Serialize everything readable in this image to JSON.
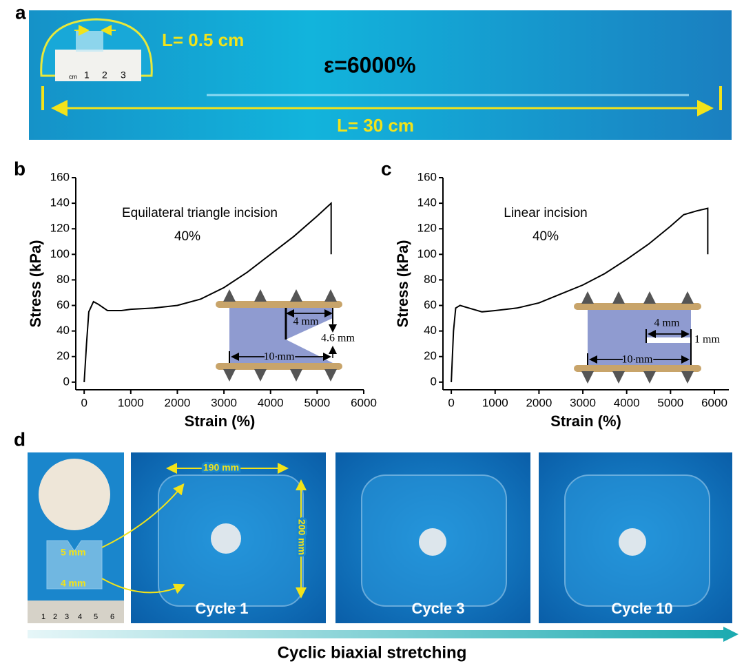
{
  "panel_labels": [
    "a",
    "b",
    "c",
    "d"
  ],
  "panel_a": {
    "inset_label": "L= 0.5 cm",
    "strain": "ε=6000%",
    "length": "L= 30 cm",
    "ruler": [
      "cm",
      "1",
      "2",
      "3"
    ]
  },
  "chart_data": [
    {
      "type": "line",
      "color": "#000000",
      "x_label": "Strain (%)",
      "y_label": "Stress (kPa)",
      "annotations": [
        "Equilateral triangle incision",
        "40%",
        "4 mm",
        "4.6 mm",
        "10 mm"
      ],
      "xlim": [
        -180,
        6000
      ],
      "xticks": [
        0,
        1000,
        2000,
        3000,
        4000,
        5000,
        6000
      ],
      "ylim": [
        -6,
        160
      ],
      "yticks": [
        0,
        20,
        40,
        60,
        80,
        100,
        120,
        140,
        160
      ],
      "x": [
        0,
        50,
        100,
        200,
        300,
        500,
        800,
        1000,
        1500,
        2000,
        2500,
        3000,
        3500,
        4000,
        4500,
        5000,
        5300,
        5300
      ],
      "values": [
        0,
        30,
        55,
        63,
        61,
        56,
        56,
        57,
        58,
        60,
        65,
        74,
        86,
        100,
        114,
        130,
        140,
        100
      ]
    },
    {
      "type": "line",
      "color": "#000000",
      "x_label": "Strain (%)",
      "y_label": "Stress (kPa)",
      "annotations": [
        "Linear incision",
        "40%",
        "4 mm",
        "1 mm",
        "10 mm"
      ],
      "xlim": [
        -190,
        6330
      ],
      "xticks": [
        0,
        1000,
        2000,
        3000,
        4000,
        5000,
        6000
      ],
      "ylim": [
        -6,
        160
      ],
      "yticks": [
        0,
        20,
        40,
        60,
        80,
        100,
        120,
        140,
        160
      ],
      "x": [
        0,
        50,
        100,
        200,
        400,
        700,
        1000,
        1500,
        2000,
        2500,
        3000,
        3500,
        4000,
        4500,
        5000,
        5300,
        5600,
        5850,
        5850
      ],
      "values": [
        0,
        40,
        58,
        60,
        58,
        55,
        56,
        58,
        62,
        69,
        76,
        85,
        96,
        108,
        122,
        131,
        134,
        136,
        100
      ]
    }
  ],
  "panel_d": {
    "labels": [
      "5 mm",
      "4 mm"
    ],
    "dimensions": [
      "190 mm",
      "200 mm"
    ],
    "cycles": [
      "Cycle 1",
      "Cycle 3",
      "Cycle 10"
    ],
    "ruler": [
      "1",
      "2",
      "3",
      "4",
      "5",
      "6"
    ],
    "caption": "Cyclic biaxial stretching"
  }
}
